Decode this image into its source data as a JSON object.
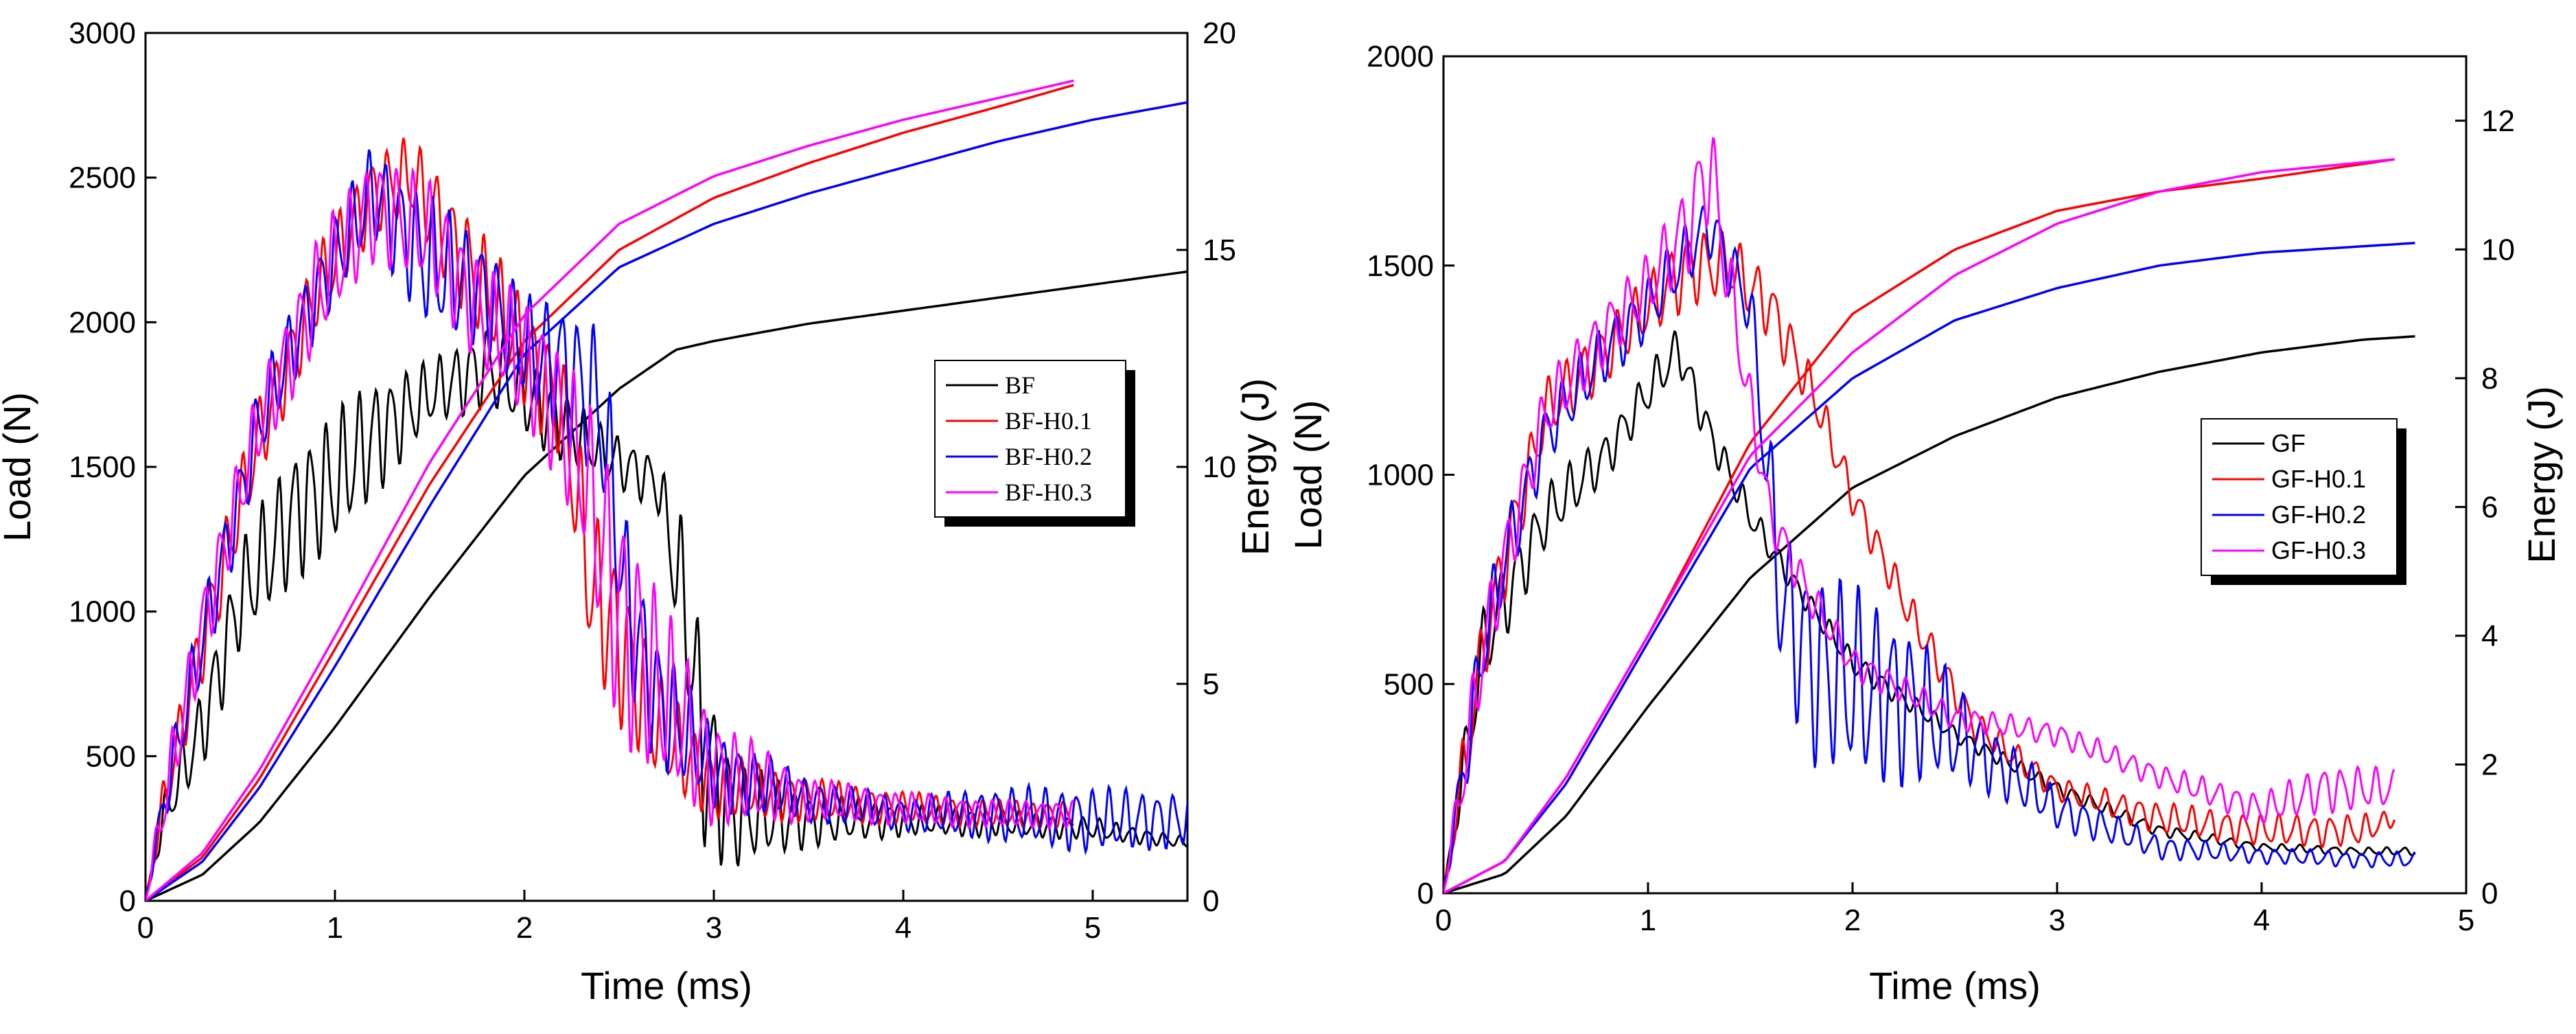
{
  "chart_data": [
    {
      "type": "line",
      "panel": "left",
      "xlabel": "Time (ms)",
      "ylabel": "Load (N)",
      "y2label": "Energy (J)",
      "xlim": [
        0,
        5.5
      ],
      "ylim": [
        0,
        3000
      ],
      "y2lim": [
        0,
        20
      ],
      "xticks": [
        0,
        1,
        2,
        3,
        4,
        5
      ],
      "yticks": [
        0,
        500,
        1000,
        1500,
        2000,
        2500,
        3000
      ],
      "y2ticks": [
        0,
        5,
        10,
        15,
        20
      ],
      "legend_position": "right-middle",
      "series": [
        {
          "name": "BF",
          "color": "#000000",
          "load_envelope": {
            "x": [
              0,
              0.1,
              0.3,
              0.5,
              0.8,
              1.0,
              1.2,
              1.5,
              1.8,
              2.1,
              2.4,
              2.7,
              2.85,
              2.95,
              3.1,
              3.5,
              4.0,
              4.5,
              5.0,
              5.5
            ],
            "y": [
              0,
              300,
              600,
              1050,
              1350,
              1450,
              1600,
              1750,
              1850,
              1700,
              1550,
              1450,
              1000,
              500,
              300,
              280,
              280,
              270,
              250,
              200
            ]
          },
          "load_osc_amp": [
            0,
            80,
            150,
            200,
            250,
            250,
            220,
            120,
            150,
            150,
            100,
            100,
            300,
            350,
            200,
            100,
            60,
            50,
            40,
            20
          ],
          "energy": {
            "x": [
              0,
              0.3,
              0.6,
              1.0,
              1.5,
              2.0,
              2.5,
              2.8,
              3.0,
              3.5,
              4.0,
              4.5,
              5.0,
              5.5
            ],
            "y": [
              0,
              0.6,
              1.8,
              4.0,
              7.0,
              9.8,
              11.8,
              12.7,
              12.9,
              13.3,
              13.6,
              13.9,
              14.2,
              14.5
            ]
          }
        },
        {
          "name": "BF-H0.1",
          "color": "#ff0000",
          "load_envelope": {
            "x": [
              0,
              0.1,
              0.3,
              0.6,
              0.9,
              1.2,
              1.4,
              1.7,
              2.0,
              2.2,
              2.35,
              2.5,
              2.7,
              3.0,
              3.5,
              4.0,
              4.5,
              4.9
            ],
            "y": [
              0,
              350,
              900,
              1600,
              2100,
              2450,
              2500,
              2200,
              1900,
              1700,
              1100,
              900,
              600,
              400,
              350,
              320,
              300,
              300
            ]
          },
          "load_osc_amp": [
            0,
            100,
            150,
            150,
            150,
            150,
            150,
            200,
            200,
            200,
            300,
            300,
            200,
            120,
            80,
            60,
            50,
            50
          ],
          "energy": {
            "x": [
              0,
              0.3,
              0.6,
              1.0,
              1.5,
              2.0,
              2.5,
              3.0,
              3.5,
              4.0,
              4.5,
              4.9
            ],
            "y": [
              0,
              1.0,
              2.8,
              5.8,
              9.6,
              12.9,
              15.0,
              16.2,
              17.0,
              17.7,
              18.3,
              18.8
            ]
          }
        },
        {
          "name": "BF-H0.2",
          "color": "#0000ff",
          "load_envelope": {
            "x": [
              0,
              0.1,
              0.3,
              0.6,
              0.9,
              1.2,
              1.5,
              1.8,
              2.0,
              2.2,
              2.4,
              2.55,
              2.7,
              3.0,
              3.5,
              4.0,
              4.5,
              5.0,
              5.5
            ],
            "y": [
              0,
              350,
              900,
              1650,
              2100,
              2450,
              2200,
              2100,
              1900,
              1850,
              1700,
              1000,
              700,
              450,
              350,
              300,
              300,
              280,
              280
            ]
          },
          "load_osc_amp": [
            0,
            100,
            150,
            150,
            150,
            180,
            250,
            200,
            200,
            250,
            300,
            300,
            250,
            150,
            80,
            60,
            100,
            120,
            100
          ],
          "energy": {
            "x": [
              0,
              0.3,
              0.6,
              1.0,
              1.5,
              2.0,
              2.5,
              3.0,
              3.5,
              4.0,
              4.5,
              5.0,
              5.5
            ],
            "y": [
              0,
              0.9,
              2.6,
              5.4,
              9.1,
              12.6,
              14.6,
              15.6,
              16.3,
              16.9,
              17.5,
              18.0,
              18.4
            ]
          }
        },
        {
          "name": "BF-H0.3",
          "color": "#ff00ff",
          "load_envelope": {
            "x": [
              0,
              0.1,
              0.3,
              0.6,
              0.9,
              1.2,
              1.5,
              1.8,
              2.1,
              2.3,
              2.5,
              2.7,
              3.0,
              3.5,
              4.0,
              4.5,
              4.9
            ],
            "y": [
              0,
              350,
              950,
              1650,
              2100,
              2400,
              2300,
              2000,
              1800,
              1500,
              1000,
              750,
              450,
              350,
              320,
              300,
              300
            ]
          },
          "load_osc_amp": [
            0,
            120,
            150,
            150,
            200,
            200,
            200,
            200,
            250,
            300,
            450,
            350,
            200,
            80,
            60,
            50,
            50
          ],
          "energy": {
            "x": [
              0,
              0.3,
              0.6,
              1.0,
              1.5,
              2.0,
              2.5,
              3.0,
              3.5,
              4.0,
              4.5,
              4.9
            ],
            "y": [
              0,
              1.1,
              3.0,
              6.1,
              10.1,
              13.5,
              15.6,
              16.7,
              17.4,
              18.0,
              18.5,
              18.9
            ]
          }
        }
      ]
    },
    {
      "type": "line",
      "panel": "right",
      "xlabel": "Time (ms)",
      "ylabel": "Load (N)",
      "y2label": "Energy (J)",
      "xlim": [
        0,
        5
      ],
      "ylim": [
        0,
        2000
      ],
      "y2lim": [
        0,
        13
      ],
      "xticks": [
        0,
        1,
        2,
        3,
        4,
        5
      ],
      "yticks": [
        0,
        500,
        1000,
        1500,
        2000
      ],
      "y2ticks": [
        0,
        2,
        4,
        6,
        8,
        10,
        12
      ],
      "legend_position": "right-middle",
      "series": [
        {
          "name": "GF",
          "color": "#000000",
          "load_envelope": {
            "x": [
              0,
              0.1,
              0.2,
              0.3,
              0.5,
              0.8,
              1.0,
              1.15,
              1.3,
              1.5,
              1.7,
              2.0,
              2.5,
              3.0,
              3.5,
              4.0,
              4.5,
              4.75
            ],
            "y": [
              0,
              300,
              600,
              700,
              900,
              1050,
              1200,
              1300,
              1100,
              900,
              750,
              550,
              380,
              250,
              150,
              110,
              100,
              100
            ]
          },
          "load_osc_amp": [
            0,
            80,
            100,
            100,
            80,
            60,
            60,
            60,
            50,
            40,
            30,
            30,
            20,
            20,
            15,
            10,
            10,
            10
          ],
          "energy": {
            "x": [
              0,
              0.3,
              0.6,
              1.0,
              1.5,
              2.0,
              2.5,
              3.0,
              3.5,
              4.0,
              4.5,
              4.75
            ],
            "y": [
              0,
              0.3,
              1.2,
              2.9,
              4.9,
              6.3,
              7.1,
              7.7,
              8.1,
              8.4,
              8.6,
              8.65
            ]
          }
        },
        {
          "name": "GF-H0.1",
          "color": "#ff0000",
          "load_envelope": {
            "x": [
              0,
              0.1,
              0.2,
              0.3,
              0.5,
              0.8,
              1.0,
              1.2,
              1.4,
              1.6,
              1.8,
              2.0,
              2.3,
              2.6,
              3.0,
              3.5,
              4.0,
              4.5,
              4.65
            ],
            "y": [
              0,
              300,
              600,
              800,
              1150,
              1300,
              1400,
              1500,
              1500,
              1400,
              1200,
              950,
              650,
              400,
              250,
              180,
              150,
              150,
              180
            ]
          },
          "load_osc_amp": [
            0,
            100,
            100,
            100,
            80,
            80,
            80,
            100,
            80,
            80,
            60,
            50,
            50,
            40,
            30,
            40,
            40,
            40,
            20
          ],
          "energy": {
            "x": [
              0,
              0.3,
              0.6,
              1.0,
              1.5,
              2.0,
              2.5,
              3.0,
              3.5,
              4.0,
              4.65
            ],
            "y": [
              0,
              0.5,
              1.8,
              4.0,
              7.0,
              9.0,
              10.0,
              10.6,
              10.9,
              11.1,
              11.4
            ]
          }
        },
        {
          "name": "GF-H0.2",
          "color": "#0000ff",
          "load_envelope": {
            "x": [
              0,
              0.1,
              0.2,
              0.3,
              0.5,
              0.8,
              1.0,
              1.3,
              1.5,
              1.65,
              1.8,
              2.0,
              2.3,
              2.6,
              3.0,
              3.5,
              4.0,
              4.5,
              4.75
            ],
            "y": [
              0,
              300,
              600,
              800,
              1100,
              1300,
              1400,
              1600,
              1400,
              700,
              550,
              500,
              450,
              350,
              200,
              110,
              90,
              80,
              80
            ]
          },
          "load_osc_amp": [
            0,
            100,
            100,
            100,
            80,
            80,
            80,
            80,
            80,
            200,
            250,
            250,
            200,
            100,
            50,
            30,
            20,
            20,
            20
          ],
          "energy": {
            "x": [
              0,
              0.3,
              0.6,
              1.0,
              1.5,
              2.0,
              2.5,
              3.0,
              3.5,
              4.0,
              4.5,
              4.75
            ],
            "y": [
              0,
              0.5,
              1.7,
              3.9,
              6.6,
              8.0,
              8.9,
              9.4,
              9.75,
              9.95,
              10.05,
              10.1
            ]
          }
        },
        {
          "name": "GF-H0.3",
          "color": "#ff00ff",
          "load_envelope": {
            "x": [
              0,
              0.1,
              0.2,
              0.3,
              0.5,
              0.8,
              1.0,
              1.2,
              1.3,
              1.45,
              1.6,
              1.8,
              2.0,
              2.5,
              3.0,
              3.5,
              4.0,
              4.3,
              4.65
            ],
            "y": [
              0,
              300,
              600,
              800,
              1150,
              1350,
              1450,
              1600,
              1750,
              1300,
              900,
              700,
              550,
              420,
              380,
              280,
              200,
              250,
              250
            ]
          },
          "load_osc_amp": [
            0,
            100,
            100,
            100,
            80,
            80,
            80,
            120,
            150,
            80,
            60,
            50,
            40,
            30,
            30,
            30,
            40,
            60,
            50
          ],
          "energy": {
            "x": [
              0,
              0.3,
              0.6,
              1.0,
              1.5,
              2.0,
              2.5,
              3.0,
              3.5,
              4.0,
              4.65
            ],
            "y": [
              0,
              0.5,
              1.8,
              4.0,
              6.8,
              8.4,
              9.6,
              10.4,
              10.9,
              11.2,
              11.4
            ]
          }
        }
      ]
    }
  ]
}
